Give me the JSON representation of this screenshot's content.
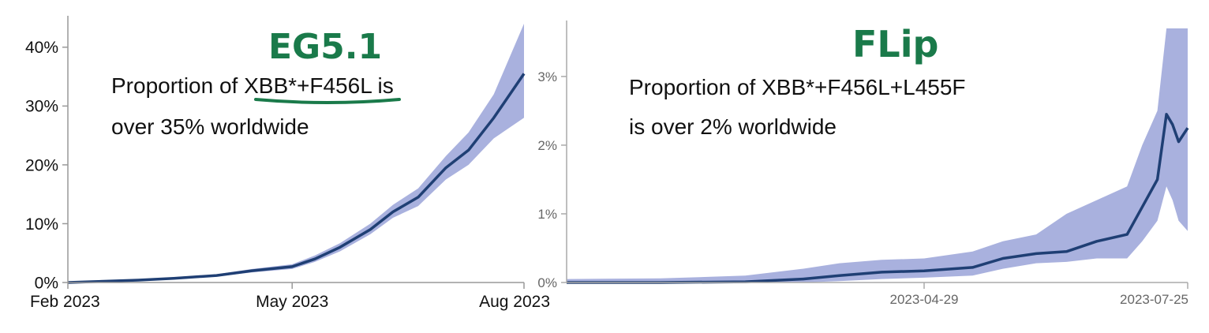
{
  "chart_data": [
    {
      "type": "area",
      "title": "",
      "handwritten_label": "EG5.1",
      "annotation_lines": [
        "Proportion of XBB*+F456L is",
        "over 35% worldwide"
      ],
      "underlined_text": "XBB*+F456L",
      "xlabel": "",
      "ylabel": "",
      "x_tick_labels": [
        "Feb 2023",
        "May 2023",
        "Aug 2023"
      ],
      "x_ticks": [
        "2023-02-01",
        "2023-05-01",
        "2023-08-01"
      ],
      "xlim": [
        "2023-02-01",
        "2023-08-01"
      ],
      "y_tick_labels": [
        "0%",
        "10%",
        "20%",
        "30%",
        "40%"
      ],
      "y_ticks": [
        0,
        10,
        20,
        30,
        40
      ],
      "ylim": [
        0,
        44
      ],
      "line_color": "#1f3f74",
      "band_color": "#a9b1de",
      "series": [
        {
          "x": [
            "2023-02-01",
            "2023-02-15",
            "2023-03-01",
            "2023-03-15",
            "2023-04-01",
            "2023-04-15",
            "2023-05-01",
            "2023-05-10",
            "2023-05-20",
            "2023-06-01",
            "2023-06-10",
            "2023-06-20",
            "2023-07-01",
            "2023-07-10",
            "2023-07-20",
            "2023-08-01"
          ],
          "y": [
            0,
            0.2,
            0.4,
            0.7,
            1.2,
            2,
            2.7,
            4,
            6,
            9,
            12,
            14.5,
            19.5,
            22.5,
            28,
            35.5
          ],
          "lower": [
            0,
            0.1,
            0.3,
            0.5,
            1,
            1.7,
            2.3,
            3.5,
            5.3,
            8.2,
            11,
            13,
            17.5,
            20,
            24.5,
            28
          ],
          "upper": [
            0.1,
            0.3,
            0.5,
            0.9,
            1.4,
            2.3,
            3.1,
            4.6,
            6.7,
            10,
            13.2,
            16,
            21.5,
            25.5,
            32,
            44
          ]
        }
      ]
    },
    {
      "type": "area",
      "title": "",
      "handwritten_label": "FLip",
      "annotation_lines": [
        "Proportion of XBB*+F456L+L455F",
        "is over 2% worldwide"
      ],
      "xlabel": "",
      "ylabel": "",
      "x_tick_labels": [
        "2023-04-29",
        "2023-07-25"
      ],
      "x_ticks": [
        "2023-04-29",
        "2023-07-25"
      ],
      "xlim": [
        "2023-01-01",
        "2023-07-25"
      ],
      "y_tick_labels": [
        "0%",
        "1%",
        "2%",
        "3%"
      ],
      "y_ticks": [
        0,
        1,
        2,
        3
      ],
      "ylim": [
        0,
        3.7
      ],
      "line_color": "#1f3f74",
      "band_color": "#a9b1de",
      "series": [
        {
          "x": [
            "2023-01-01",
            "2023-02-01",
            "2023-03-01",
            "2023-03-20",
            "2023-04-01",
            "2023-04-15",
            "2023-04-29",
            "2023-05-15",
            "2023-05-25",
            "2023-06-05",
            "2023-06-15",
            "2023-06-25",
            "2023-07-05",
            "2023-07-10",
            "2023-07-15",
            "2023-07-18",
            "2023-07-20",
            "2023-07-22",
            "2023-07-25"
          ],
          "y": [
            0,
            0,
            0.01,
            0.05,
            0.1,
            0.15,
            0.17,
            0.22,
            0.35,
            0.42,
            0.45,
            0.6,
            0.7,
            1.1,
            1.5,
            2.45,
            2.3,
            2.05,
            2.25
          ],
          "lower": [
            0,
            0,
            0,
            0,
            0.02,
            0.05,
            0.07,
            0.1,
            0.2,
            0.28,
            0.3,
            0.35,
            0.35,
            0.6,
            0.9,
            1.4,
            1.2,
            0.9,
            0.75
          ],
          "upper": [
            0.05,
            0.06,
            0.1,
            0.2,
            0.28,
            0.33,
            0.35,
            0.45,
            0.6,
            0.7,
            1.0,
            1.2,
            1.4,
            2.0,
            2.5,
            3.7,
            3.7,
            3.7,
            3.7
          ]
        }
      ]
    }
  ]
}
